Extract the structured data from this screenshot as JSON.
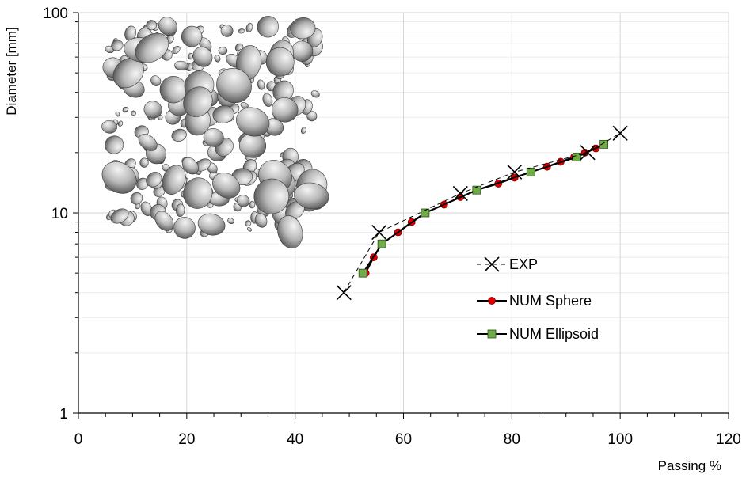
{
  "chart_data": {
    "type": "scatter",
    "xlabel": "Passing %",
    "ylabel": "Diameter [mm]",
    "xlim": [
      0,
      120
    ],
    "ylim": [
      1,
      100
    ],
    "yscale": "log",
    "x_ticks": [
      0,
      20,
      40,
      60,
      80,
      100,
      120
    ],
    "y_ticks": [
      1,
      10,
      100
    ],
    "grid": true,
    "legend_position": "right-center",
    "inset_image": "3D aggregate particle packing render (spheres and ellipsoids)",
    "series": [
      {
        "name": "EXP",
        "line": "dashed",
        "marker": "x",
        "color": "#000000",
        "x": [
          49,
          55.5,
          70.5,
          80.5,
          94,
          100
        ],
        "y": [
          4,
          8,
          12.5,
          16,
          20,
          25
        ]
      },
      {
        "name": "NUM Sphere",
        "line": "solid",
        "marker": "circle",
        "color": "#000000",
        "marker_color": "#e00000",
        "x": [
          53,
          54.5,
          56,
          59,
          61.5,
          64,
          67.5,
          70.5,
          73.5,
          77.5,
          80.5,
          83.5,
          86.5,
          89,
          91.5,
          93.5,
          95.5
        ],
        "y": [
          5,
          6,
          7,
          8,
          9,
          10,
          11,
          12,
          13,
          14,
          15,
          16,
          17,
          18,
          19,
          20,
          21
        ]
      },
      {
        "name": "NUM Ellipsoid",
        "line": "solid",
        "marker": "square",
        "color": "#000000",
        "marker_color": "#70ad47",
        "x": [
          52.5,
          56,
          64,
          73.5,
          83.5,
          92,
          97
        ],
        "y": [
          5,
          7,
          10,
          13,
          16,
          19,
          22
        ]
      }
    ]
  }
}
